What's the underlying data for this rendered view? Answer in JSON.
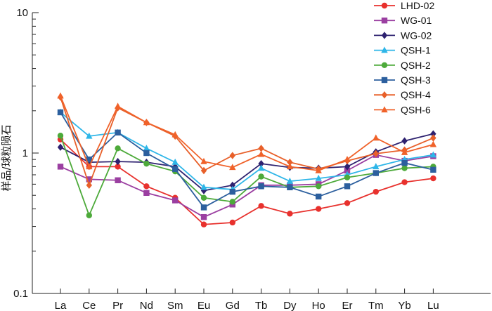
{
  "chart_data": {
    "type": "line",
    "title": "",
    "xlabel": "",
    "ylabel": "样品/球粒陨石",
    "yscale": "log",
    "ylim": [
      0.1,
      10
    ],
    "yticks": [
      {
        "value": 10,
        "label": "10"
      },
      {
        "value": 1,
        "label": "1"
      },
      {
        "value": 0.1,
        "label": "0.1"
      }
    ],
    "categories": [
      "La",
      "Ce",
      "Pr",
      "Nd",
      "Sm",
      "Eu",
      "Gd",
      "Tb",
      "Dy",
      "Ho",
      "Er",
      "Tm",
      "Yb",
      "Lu"
    ],
    "legend_position": "top-right",
    "series": [
      {
        "name": "LHD-02",
        "color": "#e8312d",
        "marker": "circle",
        "values": [
          1.25,
          0.8,
          0.8,
          0.58,
          0.48,
          0.31,
          0.32,
          0.42,
          0.37,
          0.4,
          0.44,
          0.53,
          0.62,
          0.66
        ]
      },
      {
        "name": "WG-01",
        "color": "#9b3fa1",
        "marker": "square",
        "values": [
          0.8,
          0.65,
          0.64,
          0.52,
          0.46,
          0.35,
          0.43,
          0.59,
          0.59,
          0.6,
          0.75,
          0.97,
          0.88,
          0.95
        ]
      },
      {
        "name": "WG-02",
        "color": "#2e2270",
        "marker": "diamond",
        "values": [
          1.1,
          0.86,
          0.87,
          0.86,
          0.8,
          0.54,
          0.59,
          0.84,
          0.79,
          0.78,
          0.8,
          1.02,
          1.22,
          1.37
        ]
      },
      {
        "name": "QSH-1",
        "color": "#2eb6e8",
        "marker": "triangle",
        "values": [
          1.95,
          1.32,
          1.4,
          1.08,
          0.86,
          0.57,
          0.55,
          0.78,
          0.63,
          0.66,
          0.7,
          0.8,
          0.9,
          0.97
        ]
      },
      {
        "name": "QSH-2",
        "color": "#4daa3a",
        "marker": "circle",
        "values": [
          1.33,
          0.36,
          1.08,
          0.84,
          0.74,
          0.48,
          0.45,
          0.68,
          0.57,
          0.58,
          0.67,
          0.72,
          0.78,
          0.8
        ]
      },
      {
        "name": "QSH-3",
        "color": "#2c5f9e",
        "marker": "square",
        "values": [
          1.95,
          0.9,
          1.4,
          1.0,
          0.77,
          0.41,
          0.53,
          0.58,
          0.57,
          0.49,
          0.58,
          0.72,
          0.85,
          0.76
        ]
      },
      {
        "name": "QSH-4",
        "color": "#e8602a",
        "marker": "diamond",
        "values": [
          2.5,
          0.59,
          2.1,
          1.65,
          1.32,
          0.75,
          0.96,
          1.08,
          0.86,
          0.77,
          0.88,
          0.99,
          1.05,
          1.28
        ]
      },
      {
        "name": "QSH-6",
        "color": "#f0622a",
        "marker": "triangle",
        "values": [
          2.55,
          0.8,
          2.15,
          1.65,
          1.35,
          0.87,
          0.79,
          0.98,
          0.8,
          0.75,
          0.9,
          1.28,
          1.01,
          1.15
        ]
      }
    ]
  }
}
